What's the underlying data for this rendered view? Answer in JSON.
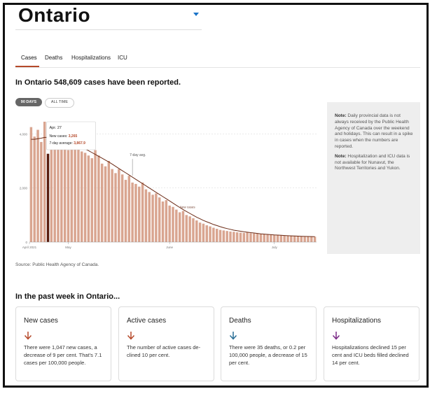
{
  "region": {
    "name": "Ontario"
  },
  "tabs": [
    "Cases",
    "Deaths",
    "Hospitalizations",
    "ICU"
  ],
  "headline": "In Ontario 548,609 cases have been reported.",
  "range_toggle": {
    "selected": "90 DAYS",
    "other": "ALL TIME"
  },
  "tooltip": {
    "date": "Apr. 27",
    "new_cases_label": "New cases:",
    "new_cases_value": "3,265",
    "avg_label": "7-day average:",
    "avg_value": "3,867.9"
  },
  "annotations": {
    "seven_day": "7-day avg.",
    "new_cases": "New cases"
  },
  "notes": [
    {
      "bold": "Note:",
      "text": "Daily provincial data is not always received by the Public Health Agency of Canada over the weekend and holidays. This can result in a spike in cases when the numbers are reported."
    },
    {
      "bold": "Note:",
      "text": "Hospitalization and ICU data is not available for Nunavut, the Northwest Territories and Yukon."
    }
  ],
  "source": "Source: Public Health Agency of Canada.",
  "week_title": "In the past week in Ontario...",
  "cards": [
    {
      "title": "New cases",
      "direction": "down",
      "color": "#b5492a",
      "text": "There were 1,047 new cases, a decrease of 9 per cent. That's 7.1 cases per 100,000 people."
    },
    {
      "title": "Active cases",
      "direction": "down",
      "color": "#b5492a",
      "text": "The number of active cases de­clined 10 per cent."
    },
    {
      "title": "Deaths",
      "direction": "down",
      "color": "#2a6f96",
      "text": "There were 35 deaths, or 0.2 per 100,000 people, a decrease of 15 per cent."
    },
    {
      "title": "Hospitalizations",
      "direction": "down",
      "color": "#7a2a86",
      "text": "Hospitalizations declined 15 per cent and ICU beds filled de­clined 14 per cent."
    }
  ],
  "colors": {
    "bar": "#d9a590",
    "bar_highlight": "#5a1e10",
    "avg_line": "#6b2a15",
    "accent": "#b5492a"
  },
  "chart_data": {
    "type": "bar",
    "ylim": [
      0,
      4500
    ],
    "yticks": [
      0,
      2000,
      4000
    ],
    "ytick_labels": [
      "0",
      "2,000",
      "4,000"
    ],
    "xtick_labels": [
      "April 2021",
      "May",
      "June",
      "July"
    ],
    "xtick_index": [
      0,
      11,
      41,
      72
    ],
    "highlight_index": 5,
    "values": [
      4250,
      3900,
      4150,
      3700,
      4450,
      3265,
      4050,
      3900,
      3850,
      3500,
      3700,
      3400,
      3650,
      3450,
      3600,
      3350,
      3300,
      3200,
      3100,
      3400,
      3200,
      2900,
      2800,
      3000,
      2700,
      2550,
      2700,
      2500,
      2300,
      2450,
      2200,
      2150,
      2050,
      2200,
      1950,
      1850,
      1750,
      1800,
      1650,
      1500,
      1550,
      1350,
      1300,
      1200,
      1100,
      1150,
      1000,
      950,
      880,
      800,
      720,
      680,
      620,
      580,
      530,
      490,
      450,
      430,
      410,
      390,
      380,
      360,
      350,
      340,
      360,
      330,
      320,
      310,
      300,
      290,
      280,
      270,
      260,
      270,
      250,
      240,
      230,
      240,
      230,
      220,
      210,
      200,
      210,
      205,
      200
    ],
    "avg": [
      3800,
      3800,
      3820,
      3840,
      3870,
      3868,
      3850,
      3830,
      3800,
      3760,
      3720,
      3680,
      3640,
      3600,
      3560,
      3500,
      3440,
      3380,
      3310,
      3240,
      3170,
      3100,
      3030,
      2960,
      2880,
      2800,
      2720,
      2640,
      2560,
      2480,
      2400,
      2320,
      2240,
      2160,
      2080,
      2000,
      1920,
      1840,
      1760,
      1680,
      1600,
      1520,
      1440,
      1360,
      1280,
      1200,
      1130,
      1060,
      990,
      920,
      860,
      800,
      750,
      700,
      650,
      610,
      570,
      530,
      500,
      470,
      440,
      420,
      400,
      380,
      365,
      350,
      335,
      320,
      305,
      295,
      285,
      275,
      265,
      258,
      250,
      243,
      236,
      230,
      225,
      220,
      215,
      210,
      207,
      204,
      202
    ],
    "seven_day_label_index": 30,
    "new_cases_label_index": 44
  }
}
